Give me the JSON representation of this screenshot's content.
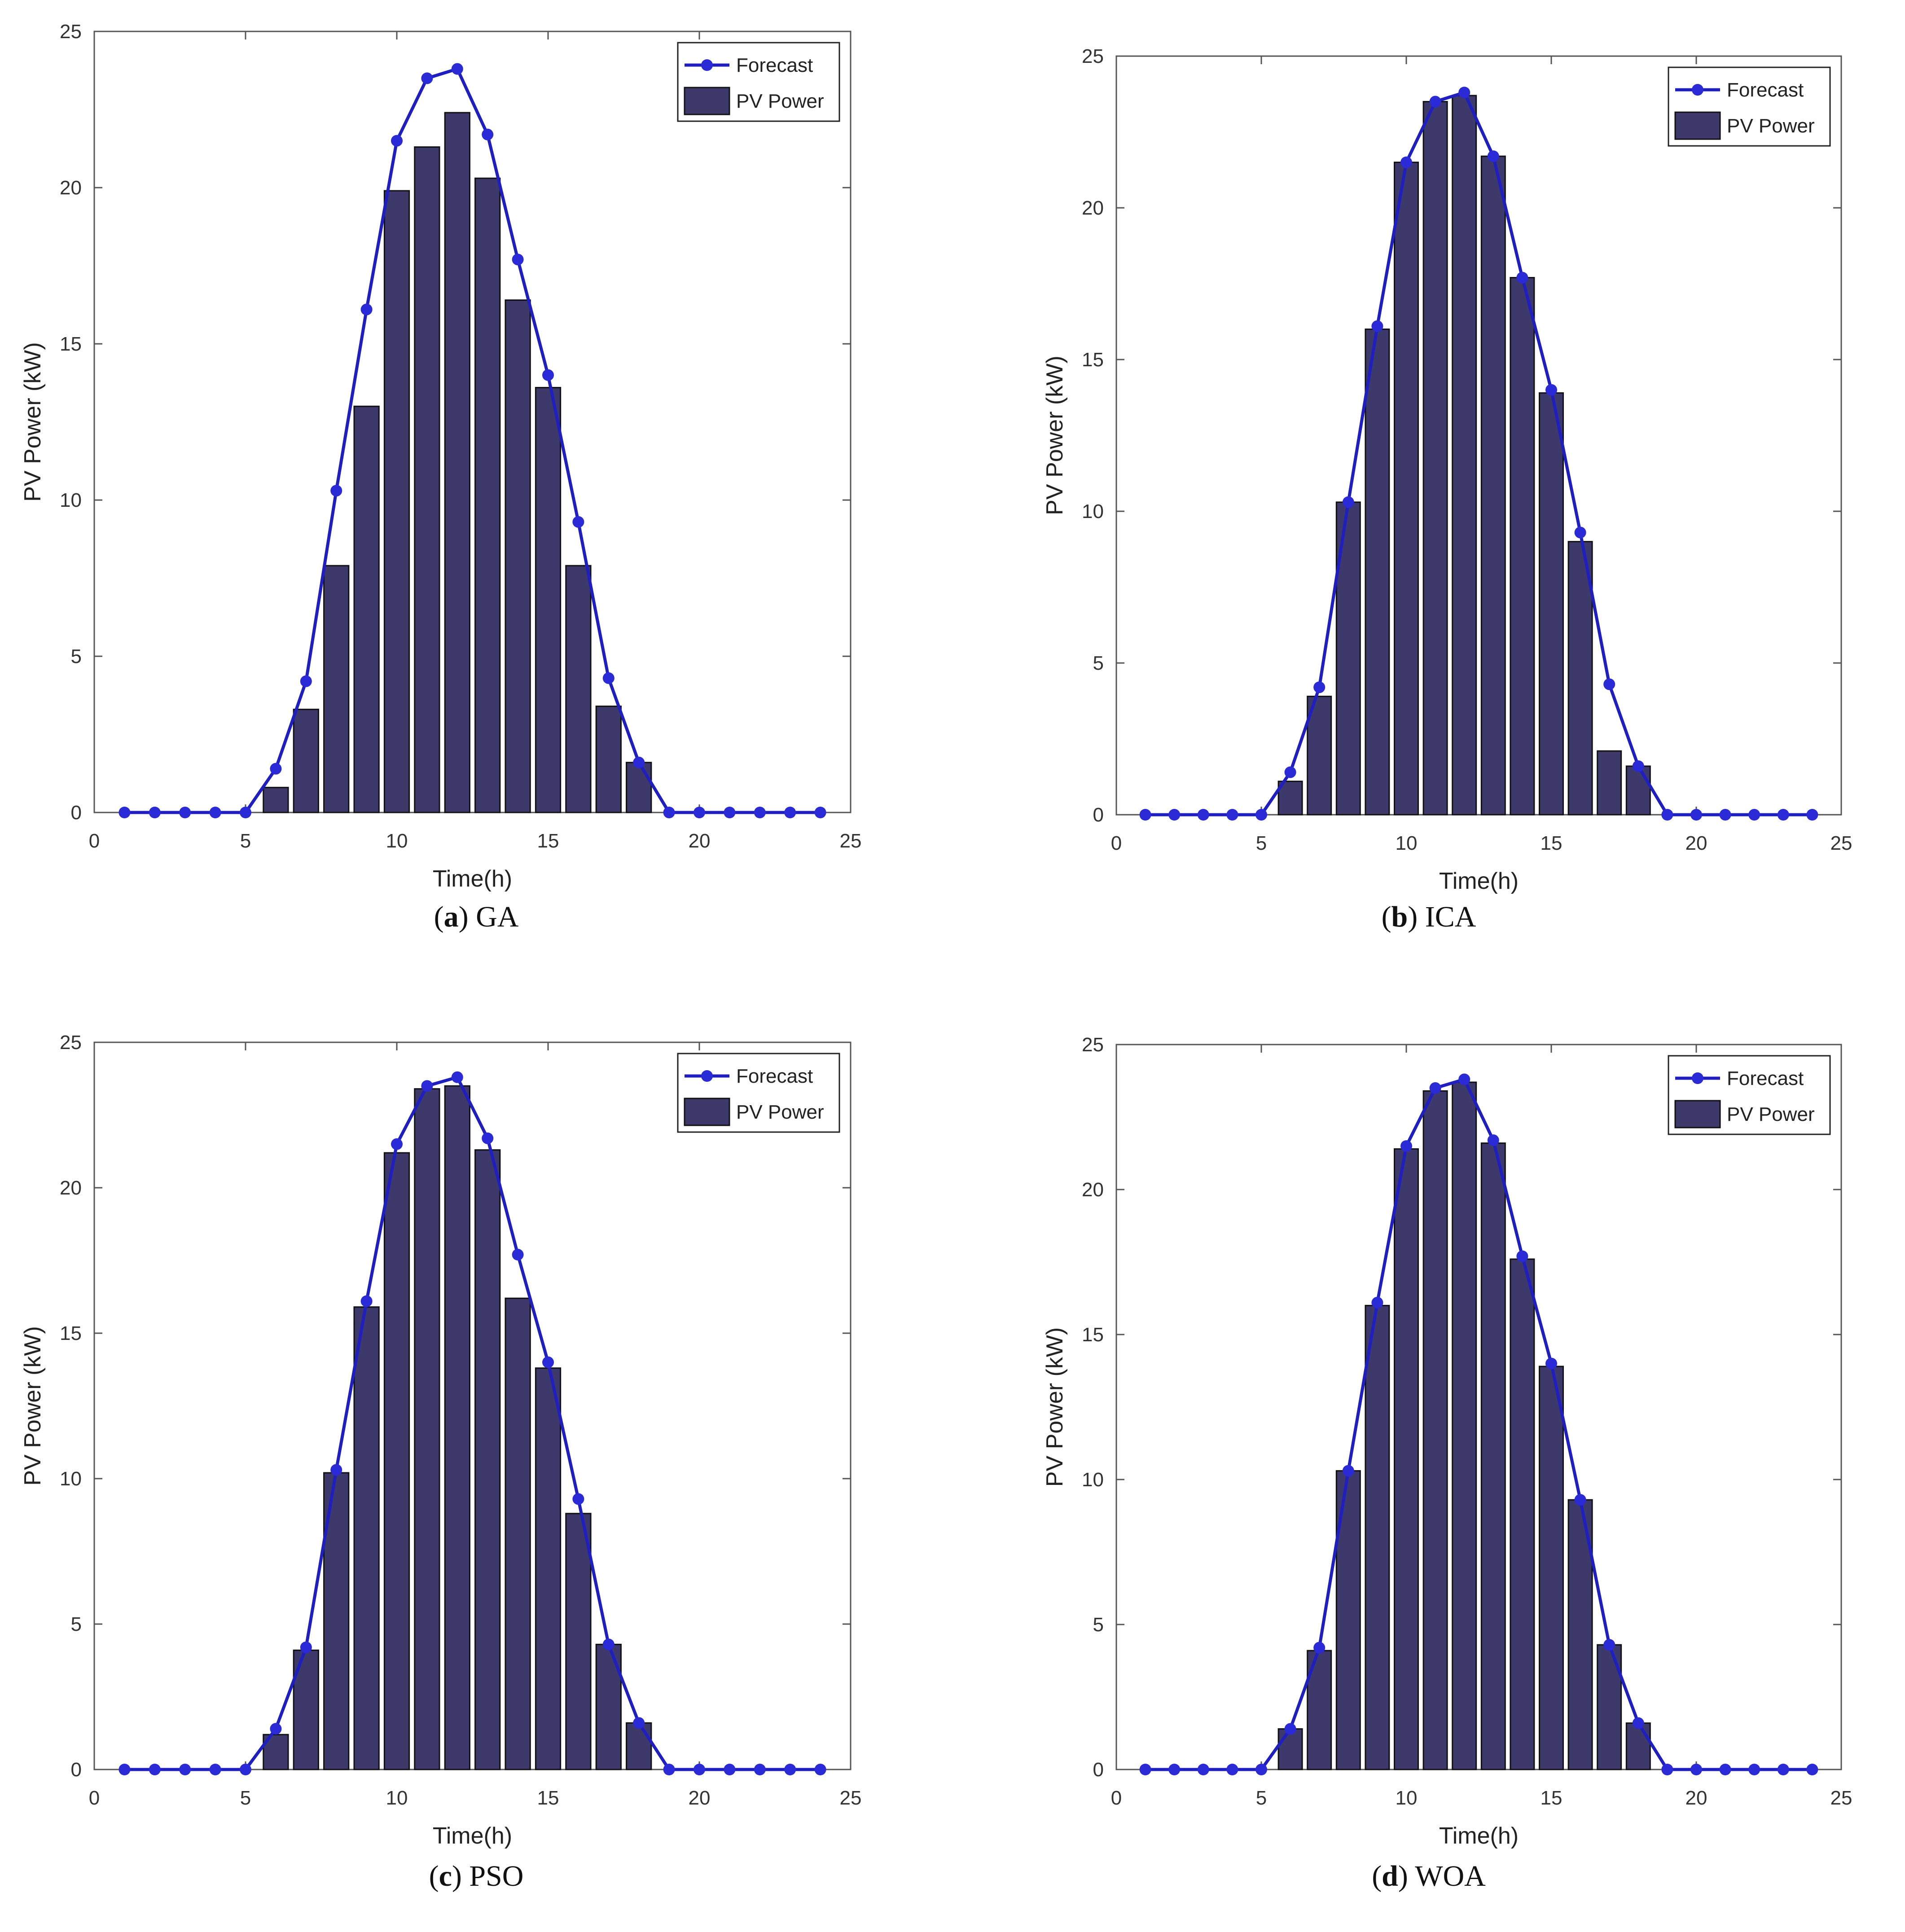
{
  "chart_data": [
    {
      "id": "a",
      "type": "bar",
      "overlay": "line",
      "caption_letter": "a",
      "caption_text": "GA",
      "xlabel": "Time(h)",
      "ylabel": "PV Power (kW)",
      "xlim": [
        0,
        25
      ],
      "ylim": [
        0,
        25
      ],
      "xticks": [
        0,
        5,
        10,
        15,
        20,
        25
      ],
      "yticks": [
        0,
        5,
        10,
        15,
        20,
        25
      ],
      "legend": [
        "Forecast",
        "PV Power"
      ],
      "legend_position": "top-right",
      "x": [
        1,
        2,
        3,
        4,
        5,
        6,
        7,
        8,
        9,
        10,
        11,
        12,
        13,
        14,
        15,
        16,
        17,
        18,
        19,
        20,
        21,
        22,
        23,
        24
      ],
      "series": [
        {
          "name": "Forecast",
          "kind": "line",
          "values": [
            0,
            0,
            0,
            0,
            0,
            1.4,
            4.2,
            10.3,
            16.1,
            21.5,
            23.5,
            23.8,
            21.7,
            17.7,
            14.0,
            9.3,
            4.3,
            1.6,
            0,
            0,
            0,
            0,
            0,
            0
          ]
        },
        {
          "name": "PV Power",
          "kind": "bar",
          "values": [
            0,
            0,
            0,
            0,
            0,
            0.8,
            3.3,
            7.9,
            13.0,
            19.9,
            21.3,
            22.4,
            20.3,
            16.4,
            13.6,
            7.9,
            3.4,
            1.6,
            0,
            0,
            0,
            0,
            0,
            0
          ]
        }
      ]
    },
    {
      "id": "b",
      "type": "bar",
      "overlay": "line",
      "caption_letter": "b",
      "caption_text": "ICA",
      "xlabel": "Time(h)",
      "ylabel": "PV Power (kW)",
      "xlim": [
        0,
        25
      ],
      "ylim": [
        0,
        25
      ],
      "xticks": [
        0,
        5,
        10,
        15,
        20,
        25
      ],
      "yticks": [
        0,
        5,
        10,
        15,
        20,
        25
      ],
      "legend": [
        "Forecast",
        "PV Power"
      ],
      "legend_position": "top-right",
      "x": [
        1,
        2,
        3,
        4,
        5,
        6,
        7,
        8,
        9,
        10,
        11,
        12,
        13,
        14,
        15,
        16,
        17,
        18,
        19,
        20,
        21,
        22,
        23,
        24
      ],
      "series": [
        {
          "name": "Forecast",
          "kind": "line",
          "values": [
            0,
            0,
            0,
            0,
            0,
            1.4,
            4.2,
            10.3,
            16.1,
            21.5,
            23.5,
            23.8,
            21.7,
            17.7,
            14.0,
            9.3,
            4.3,
            1.6,
            0,
            0,
            0,
            0,
            0,
            0
          ]
        },
        {
          "name": "PV Power",
          "kind": "bar",
          "values": [
            0,
            0,
            0,
            0,
            0,
            1.1,
            3.9,
            10.3,
            16.0,
            21.5,
            23.5,
            23.7,
            21.7,
            17.7,
            13.9,
            9.0,
            2.1,
            1.6,
            0,
            0,
            0,
            0,
            0,
            0
          ]
        }
      ]
    },
    {
      "id": "c",
      "type": "bar",
      "overlay": "line",
      "caption_letter": "c",
      "caption_text": "PSO",
      "xlabel": "Time(h)",
      "ylabel": "PV Power (kW)",
      "xlim": [
        0,
        25
      ],
      "ylim": [
        0,
        25
      ],
      "xticks": [
        0,
        5,
        10,
        15,
        20,
        25
      ],
      "yticks": [
        0,
        5,
        10,
        15,
        20,
        25
      ],
      "legend": [
        "Forecast",
        "PV Power"
      ],
      "legend_position": "top-right",
      "x": [
        1,
        2,
        3,
        4,
        5,
        6,
        7,
        8,
        9,
        10,
        11,
        12,
        13,
        14,
        15,
        16,
        17,
        18,
        19,
        20,
        21,
        22,
        23,
        24
      ],
      "series": [
        {
          "name": "Forecast",
          "kind": "line",
          "values": [
            0,
            0,
            0,
            0,
            0,
            1.4,
            4.2,
            10.3,
            16.1,
            21.5,
            23.5,
            23.8,
            21.7,
            17.7,
            14.0,
            9.3,
            4.3,
            1.6,
            0,
            0,
            0,
            0,
            0,
            0
          ]
        },
        {
          "name": "PV Power",
          "kind": "bar",
          "values": [
            0,
            0,
            0,
            0,
            0,
            1.2,
            4.1,
            10.2,
            15.9,
            21.2,
            23.4,
            23.5,
            21.3,
            16.2,
            13.8,
            8.8,
            4.3,
            1.6,
            0,
            0,
            0,
            0,
            0,
            0
          ]
        }
      ]
    },
    {
      "id": "d",
      "type": "bar",
      "overlay": "line",
      "caption_letter": "d",
      "caption_text": "WOA",
      "xlabel": "Time(h)",
      "ylabel": "PV Power (kW)",
      "xlim": [
        0,
        25
      ],
      "ylim": [
        0,
        25
      ],
      "xticks": [
        0,
        5,
        10,
        15,
        20,
        25
      ],
      "yticks": [
        0,
        5,
        10,
        15,
        20,
        25
      ],
      "legend": [
        "Forecast",
        "PV Power"
      ],
      "legend_position": "top-right",
      "x": [
        1,
        2,
        3,
        4,
        5,
        6,
        7,
        8,
        9,
        10,
        11,
        12,
        13,
        14,
        15,
        16,
        17,
        18,
        19,
        20,
        21,
        22,
        23,
        24
      ],
      "series": [
        {
          "name": "Forecast",
          "kind": "line",
          "values": [
            0,
            0,
            0,
            0,
            0,
            1.4,
            4.2,
            10.3,
            16.1,
            21.5,
            23.5,
            23.8,
            21.7,
            17.7,
            14.0,
            9.3,
            4.3,
            1.6,
            0,
            0,
            0,
            0,
            0,
            0
          ]
        },
        {
          "name": "PV Power",
          "kind": "bar",
          "values": [
            0,
            0,
            0,
            0,
            0,
            1.4,
            4.1,
            10.3,
            16.0,
            21.4,
            23.4,
            23.7,
            21.6,
            17.6,
            13.9,
            9.3,
            4.3,
            1.6,
            0,
            0,
            0,
            0,
            0,
            0
          ]
        }
      ]
    }
  ],
  "colors": {
    "bar_fill": "#3d3a6b",
    "bar_stroke": "#111111",
    "line": "#1f1fc0",
    "marker": "#2a2ad6",
    "axis": "#555555"
  }
}
